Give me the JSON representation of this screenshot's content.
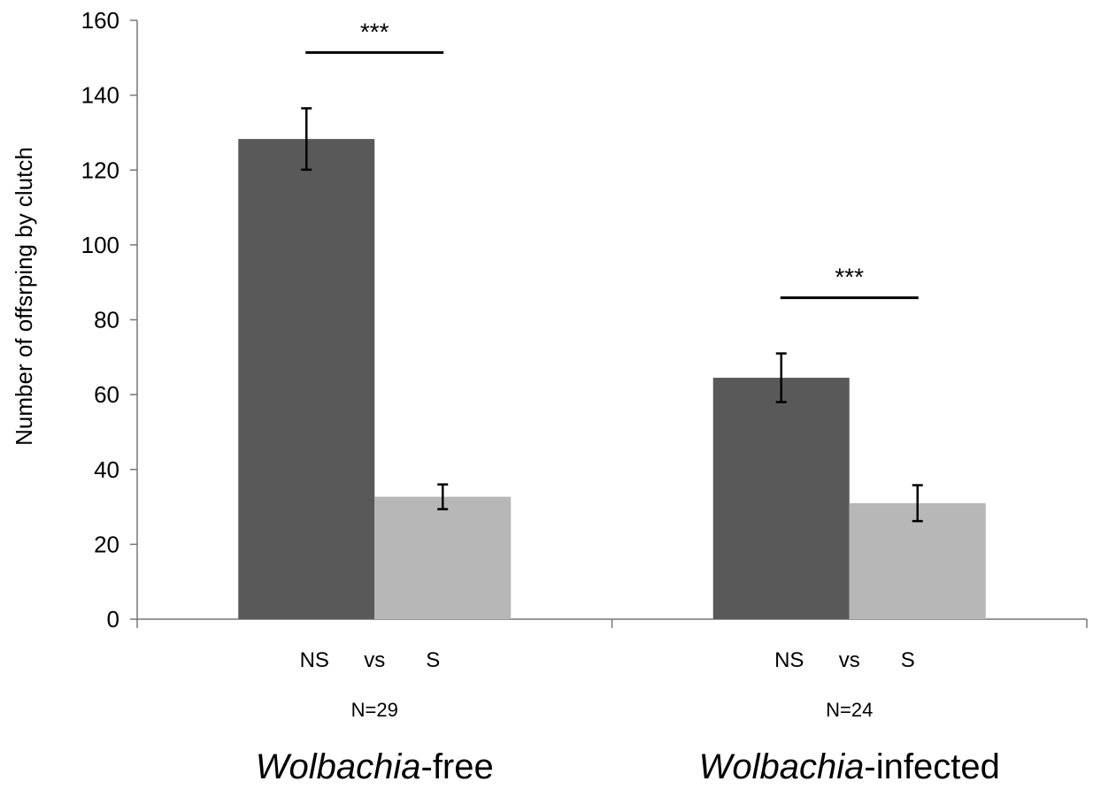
{
  "chart_data": {
    "type": "bar",
    "ylabel": "Number of offsrping by clutch",
    "ylim": [
      0,
      160
    ],
    "yticks": [
      0,
      20,
      40,
      60,
      80,
      100,
      120,
      140,
      160
    ],
    "grid": false,
    "colors": {
      "NS": "#595959",
      "S": "#b7b7b7"
    },
    "groups": [
      {
        "italic_label": "Wolbachia",
        "suffix_label": "-free",
        "n_label": "N=29",
        "categories_text": [
          "NS",
          "vs",
          "S"
        ],
        "significance": "***",
        "bars": [
          {
            "category": "NS",
            "value": 128.3,
            "error": 8.2
          },
          {
            "category": "S",
            "value": 32.7,
            "error": 3.3
          }
        ]
      },
      {
        "italic_label": "Wolbachia",
        "suffix_label": "-infected",
        "n_label": "N=24",
        "categories_text": [
          "NS",
          "vs",
          "S"
        ],
        "significance": "***",
        "bars": [
          {
            "category": "NS",
            "value": 64.5,
            "error": 6.5
          },
          {
            "category": "S",
            "value": 31.0,
            "error": 4.8
          }
        ]
      }
    ]
  }
}
